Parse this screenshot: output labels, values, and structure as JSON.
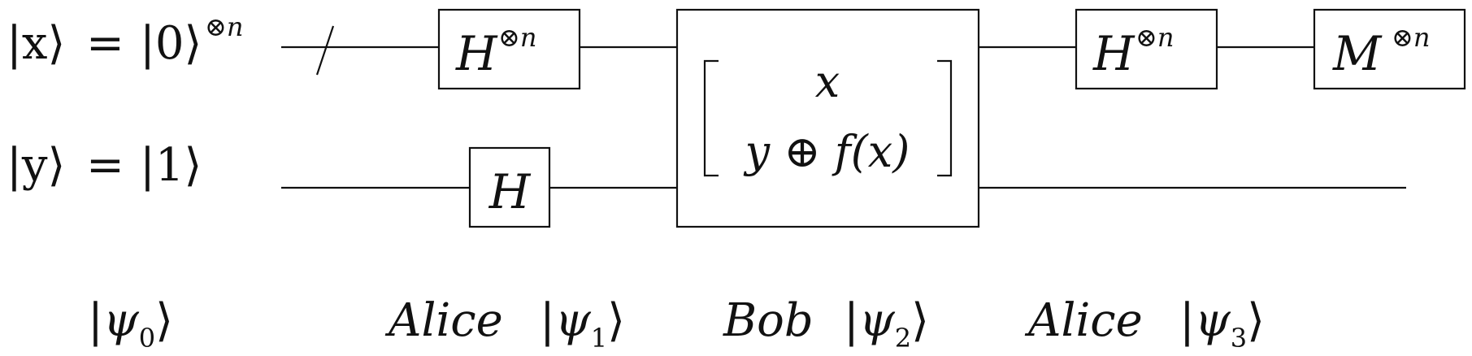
{
  "inputs": {
    "x_ket": "|x⟩",
    "x_eq": "=",
    "x_state": "|0⟩",
    "x_power": "⊗n",
    "y_ket": "|y⟩",
    "y_eq": "=",
    "y_state": "|1⟩"
  },
  "gates": {
    "hadamard_n": {
      "base": "H",
      "power": "⊗n"
    },
    "hadamard_1": {
      "base": "H"
    },
    "oracle": {
      "row1": "x",
      "row2": "y ⊕ f(x)"
    },
    "hadamard_n_out": {
      "base": "H",
      "power": "⊗n"
    },
    "measure_n": {
      "base": "M",
      "power": "⊗n"
    }
  },
  "stages": [
    {
      "actor": "",
      "psi": "ψ",
      "index": "0"
    },
    {
      "actor": "Alice",
      "psi": "ψ",
      "index": "1"
    },
    {
      "actor": "Bob",
      "psi": "ψ",
      "index": "2"
    },
    {
      "actor": "Alice",
      "psi": "ψ",
      "index": "3"
    }
  ]
}
